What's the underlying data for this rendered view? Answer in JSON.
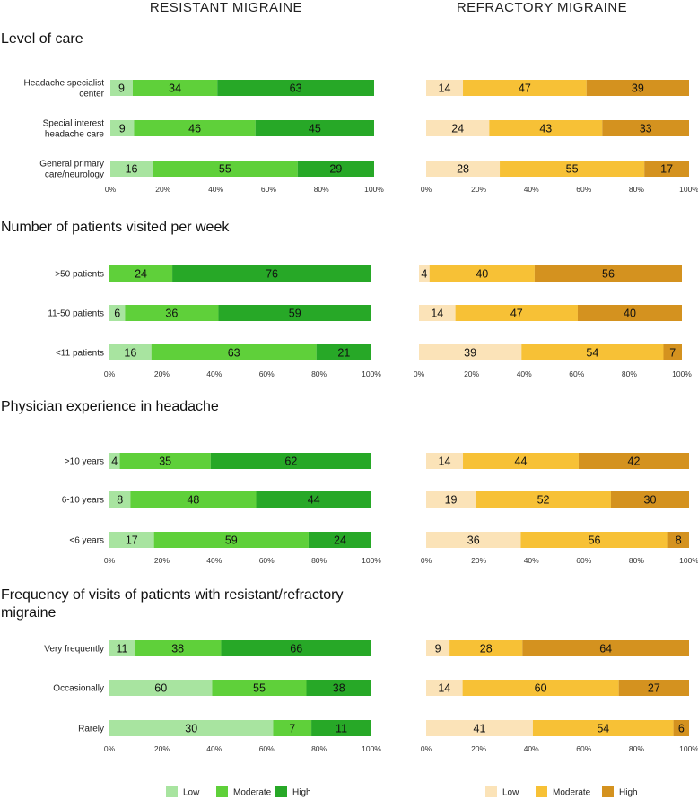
{
  "column_titles": [
    "RESISTANT MIGRAINE",
    "REFRACTORY MIGRAINE"
  ],
  "legend_left": [
    {
      "label": "Low",
      "color": "#a8e4a0"
    },
    {
      "label": "Moderate",
      "color": "#5fd03a"
    },
    {
      "label": "High",
      "color": "#27a827"
    }
  ],
  "legend_right": [
    {
      "label": "Low",
      "color": "#fbe3b8"
    },
    {
      "label": "Moderate",
      "color": "#f7c136"
    },
    {
      "label": "High",
      "color": "#d4921f"
    }
  ],
  "chart_data": [
    {
      "type": "bar",
      "stacked": true,
      "orientation": "horizontal",
      "title": "Level of care",
      "categories": [
        "Headache specialist center",
        "Special interest headache care",
        "General primary care/neurology"
      ],
      "category_lines": [
        [
          "Headache specialist",
          "center"
        ],
        [
          "Special interest",
          "headache care"
        ],
        [
          "General primary",
          "care/neurology"
        ]
      ],
      "xlim": [
        0,
        100
      ],
      "xticks": [
        "0%",
        "20%",
        "40%",
        "60%",
        "80%",
        "100%"
      ],
      "resistant": {
        "series": [
          {
            "name": "Low",
            "values": [
              9,
              9,
              16
            ]
          },
          {
            "name": "Moderate",
            "values": [
              34,
              46,
              55
            ]
          },
          {
            "name": "High",
            "values": [
              63,
              45,
              29
            ]
          }
        ]
      },
      "refractory": {
        "series": [
          {
            "name": "Low",
            "values": [
              14,
              24,
              28
            ]
          },
          {
            "name": "Moderate",
            "values": [
              47,
              43,
              55
            ]
          },
          {
            "name": "High",
            "values": [
              39,
              33,
              17
            ]
          }
        ]
      }
    },
    {
      "type": "bar",
      "stacked": true,
      "orientation": "horizontal",
      "title": "Number of patients visited per week",
      "categories": [
        ">50 patients",
        "11-50 patients",
        "<11 patients"
      ],
      "category_lines": [
        [
          ">50 patients"
        ],
        [
          "11-50 patients"
        ],
        [
          "<11 patients"
        ]
      ],
      "xlim": [
        0,
        100
      ],
      "xticks": [
        "0%",
        "20%",
        "40%",
        "60%",
        "80%",
        "100%"
      ],
      "resistant": {
        "series": [
          {
            "name": "Low",
            "values": [
              0,
              6,
              16
            ]
          },
          {
            "name": "Moderate",
            "values": [
              24,
              36,
              63
            ]
          },
          {
            "name": "High",
            "values": [
              76,
              59,
              21
            ]
          }
        ]
      },
      "refractory": {
        "series": [
          {
            "name": "Low",
            "values": [
              4,
              14,
              39
            ]
          },
          {
            "name": "Moderate",
            "values": [
              40,
              47,
              54
            ]
          },
          {
            "name": "High",
            "values": [
              56,
              40,
              7
            ]
          }
        ]
      }
    },
    {
      "type": "bar",
      "stacked": true,
      "orientation": "horizontal",
      "title": "Physician experience in headache",
      "categories": [
        ">10 years",
        "6-10 years",
        "<6 years"
      ],
      "category_lines": [
        [
          ">10 years"
        ],
        [
          "6-10 years"
        ],
        [
          "<6 years"
        ]
      ],
      "xlim": [
        0,
        100
      ],
      "xticks": [
        "0%",
        "20%",
        "40%",
        "60%",
        "80%",
        "100%"
      ],
      "resistant": {
        "series": [
          {
            "name": "Low",
            "values": [
              4,
              8,
              17
            ]
          },
          {
            "name": "Moderate",
            "values": [
              35,
              48,
              59
            ]
          },
          {
            "name": "High",
            "values": [
              62,
              44,
              24
            ]
          }
        ]
      },
      "refractory": {
        "series": [
          {
            "name": "Low",
            "values": [
              14,
              19,
              36
            ]
          },
          {
            "name": "Moderate",
            "values": [
              44,
              52,
              56
            ]
          },
          {
            "name": "High",
            "values": [
              42,
              30,
              8
            ]
          }
        ]
      }
    },
    {
      "type": "bar",
      "stacked": true,
      "orientation": "horizontal",
      "title": "Frequency of visits of patients with resistant/refractory migraine",
      "title_lines": [
        "Frequency of visits of patients with resistant/refractory",
        "migraine"
      ],
      "categories": [
        "Very frequently",
        "Occasionally",
        "Rarely"
      ],
      "category_lines": [
        [
          "Very frequently"
        ],
        [
          "Occasionally"
        ],
        [
          "Rarely"
        ]
      ],
      "xlim": [
        0,
        100
      ],
      "xticks": [
        "0%",
        "20%",
        "40%",
        "60%",
        "80%",
        "100%"
      ],
      "resistant": {
        "series": [
          {
            "name": "Low",
            "values": [
              11,
              60,
              30
            ]
          },
          {
            "name": "Moderate",
            "values": [
              38,
              55,
              7
            ]
          },
          {
            "name": "High",
            "values": [
              66,
              38,
              11
            ]
          }
        ]
      },
      "refractory": {
        "series": [
          {
            "name": "Low",
            "values": [
              9,
              14,
              41
            ]
          },
          {
            "name": "Moderate",
            "values": [
              28,
              60,
              54
            ]
          },
          {
            "name": "High",
            "values": [
              64,
              27,
              6
            ]
          }
        ]
      }
    }
  ]
}
